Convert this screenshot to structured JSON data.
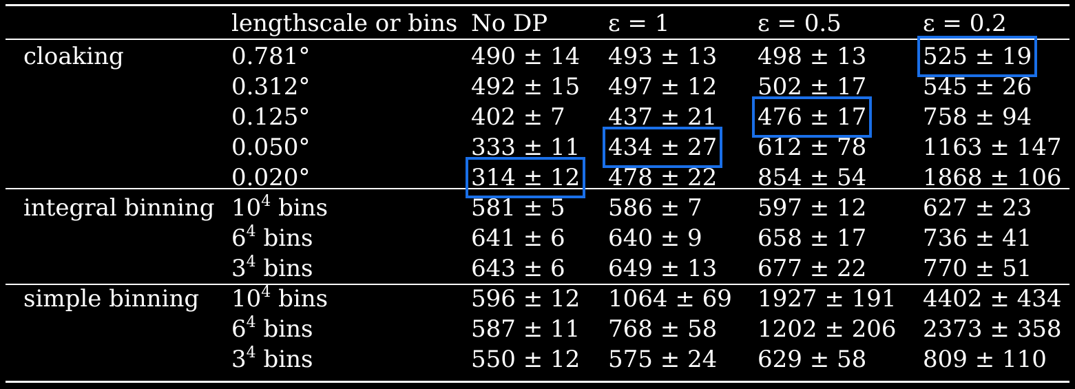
{
  "highlight_color": "#1a6fe8",
  "table": {
    "columns": [
      "",
      "lengthscale or bins",
      "No DP",
      "ε = 1",
      "ε = 0.5",
      "ε = 0.2"
    ],
    "groups": [
      {
        "label": "cloaking",
        "rows": [
          {
            "setting": "0.781°",
            "values": [
              "490 ± 14",
              "493 ± 13",
              "498 ± 13",
              "525 ± 19"
            ],
            "highlight": [
              false,
              false,
              false,
              true
            ]
          },
          {
            "setting": "0.312°",
            "values": [
              "492 ± 15",
              "497 ± 12",
              "502 ± 17",
              "545 ± 26"
            ],
            "highlight": [
              false,
              false,
              false,
              false
            ]
          },
          {
            "setting": "0.125°",
            "values": [
              "402 ± 7",
              "437 ± 21",
              "476 ± 17",
              "758 ± 94"
            ],
            "highlight": [
              false,
              false,
              true,
              false
            ]
          },
          {
            "setting": "0.050°",
            "values": [
              "333 ± 11",
              "434 ± 27",
              "612 ± 78",
              "1163 ± 147"
            ],
            "highlight": [
              false,
              true,
              false,
              false
            ]
          },
          {
            "setting": "0.020°",
            "values": [
              "314 ± 12",
              "478 ± 22",
              "854 ± 54",
              "1868 ± 106"
            ],
            "highlight": [
              true,
              false,
              false,
              false
            ]
          }
        ]
      },
      {
        "label": "integral binning",
        "rows": [
          {
            "setting_base": "10",
            "setting_exp": "4",
            "setting_suffix": " bins",
            "values": [
              "581 ± 5",
              "586 ± 7",
              "597 ± 12",
              "627 ± 23"
            ],
            "highlight": [
              false,
              false,
              false,
              false
            ]
          },
          {
            "setting_base": "6",
            "setting_exp": "4",
            "setting_suffix": " bins",
            "values": [
              "641 ± 6",
              "640 ± 9",
              "658 ± 17",
              "736 ± 41"
            ],
            "highlight": [
              false,
              false,
              false,
              false
            ]
          },
          {
            "setting_base": "3",
            "setting_exp": "4",
            "setting_suffix": " bins",
            "values": [
              "643 ± 6",
              "649 ± 13",
              "677 ± 22",
              "770 ± 51"
            ],
            "highlight": [
              false,
              false,
              false,
              false
            ]
          }
        ]
      },
      {
        "label": "simple binning",
        "rows": [
          {
            "setting_base": "10",
            "setting_exp": "4",
            "setting_suffix": " bins",
            "values": [
              "596 ± 12",
              "1064 ± 69",
              "1927 ± 191",
              "4402 ± 434"
            ],
            "highlight": [
              false,
              false,
              false,
              false
            ]
          },
          {
            "setting_base": "6",
            "setting_exp": "4",
            "setting_suffix": " bins",
            "values": [
              "587 ± 11",
              "768 ± 58",
              "1202 ± 206",
              "2373 ± 358"
            ],
            "highlight": [
              false,
              false,
              false,
              false
            ]
          },
          {
            "setting_base": "3",
            "setting_exp": "4",
            "setting_suffix": " bins",
            "values": [
              "550 ± 12",
              "575 ± 24",
              "629 ± 58",
              "809 ± 110"
            ],
            "highlight": [
              false,
              false,
              false,
              false
            ]
          }
        ]
      }
    ]
  }
}
